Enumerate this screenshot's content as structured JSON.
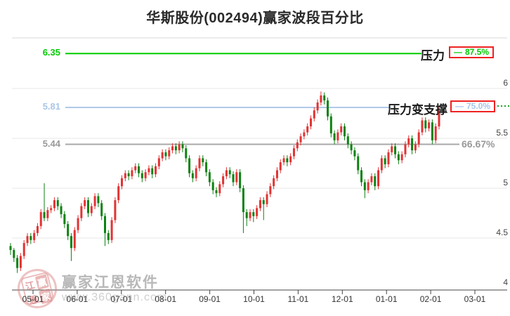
{
  "title": "华斯股份(002494)赢家波段百分比",
  "watermark": {
    "brand": "赢家江恩软件",
    "url": "www.360gann.com",
    "seal_chars": [
      "江",
      "赢",
      "恩",
      "家"
    ]
  },
  "chart_data": {
    "type": "candlestick",
    "title": "华斯股份(002494)赢家波段百分比",
    "up_color": "#e23333",
    "down_color": "#0e8212",
    "x_axis": {
      "tick_labels": [
        "05-01",
        "06-01",
        "07-01",
        "08-01",
        "09-01",
        "10-01",
        "11-01",
        "12-01",
        "01-01",
        "02-01",
        "03-01"
      ]
    },
    "y_axis": {
      "side": "right",
      "tick_labels": [
        "6",
        "5.5",
        "5",
        "4.5",
        "4"
      ],
      "tick_values": [
        6,
        5.5,
        5,
        4.5,
        4
      ],
      "gridlines": [
        6,
        5.5,
        5,
        4.5
      ],
      "range": [
        3.95,
        6.55
      ]
    },
    "horizontal_lines": [
      {
        "price": 6.35,
        "price_label": "6.35",
        "label": "压力",
        "dash": "—",
        "percent": "87.5%",
        "color": "#00cc00",
        "text_color": "#00cc00",
        "badged": true
      },
      {
        "price": 5.81,
        "price_label": "5.81",
        "label": "压力变支撑",
        "dash": "—",
        "percent": "75.0%",
        "color": "#b0c9e8",
        "text_color": "#a9c6e8",
        "badged": true
      },
      {
        "price": 5.44,
        "price_label": "5.44",
        "label": "",
        "dash": "",
        "percent": "66.67%",
        "color": "#a8a8a8",
        "text_color": "#999999",
        "badged": false
      }
    ],
    "candles": [
      [
        4.42,
        4.45,
        4.33,
        4.38
      ],
      [
        4.38,
        4.4,
        4.26,
        4.3
      ],
      [
        4.3,
        4.33,
        4.15,
        4.2
      ],
      [
        4.2,
        4.35,
        4.17,
        4.32
      ],
      [
        4.32,
        4.48,
        4.29,
        4.45
      ],
      [
        4.45,
        4.55,
        4.42,
        4.52
      ],
      [
        4.52,
        4.55,
        4.44,
        4.48
      ],
      [
        4.48,
        4.58,
        4.45,
        4.55
      ],
      [
        4.55,
        4.65,
        4.52,
        4.62
      ],
      [
        4.62,
        4.79,
        4.59,
        4.76
      ],
      [
        4.76,
        5.05,
        4.67,
        4.7
      ],
      [
        4.7,
        4.81,
        4.67,
        4.78
      ],
      [
        4.78,
        4.83,
        4.75,
        4.8
      ],
      [
        4.8,
        4.91,
        4.77,
        4.88
      ],
      [
        4.88,
        4.91,
        4.78,
        4.82
      ],
      [
        4.82,
        4.85,
        4.7,
        4.74
      ],
      [
        4.74,
        4.77,
        4.6,
        4.64
      ],
      [
        4.64,
        4.67,
        4.48,
        4.52
      ],
      [
        4.52,
        4.55,
        4.27,
        4.4
      ],
      [
        4.4,
        4.61,
        4.37,
        4.58
      ],
      [
        4.58,
        4.73,
        4.55,
        4.7
      ],
      [
        4.7,
        4.85,
        4.67,
        4.82
      ],
      [
        4.82,
        4.91,
        4.79,
        4.88
      ],
      [
        4.88,
        4.91,
        4.71,
        4.75
      ],
      [
        4.75,
        4.85,
        4.72,
        4.82
      ],
      [
        4.82,
        4.95,
        4.79,
        4.92
      ],
      [
        4.92,
        4.95,
        4.81,
        4.85
      ],
      [
        4.85,
        4.88,
        4.68,
        4.72
      ],
      [
        4.72,
        4.75,
        4.42,
        4.55
      ],
      [
        4.55,
        4.58,
        4.44,
        4.48
      ],
      [
        4.48,
        4.71,
        4.45,
        4.68
      ],
      [
        4.68,
        4.91,
        4.65,
        4.88
      ],
      [
        4.88,
        5.05,
        4.85,
        5.02
      ],
      [
        5.02,
        5.13,
        4.99,
        5.1
      ],
      [
        5.1,
        5.18,
        5.07,
        5.15
      ],
      [
        5.15,
        5.18,
        5.08,
        5.12
      ],
      [
        5.12,
        5.21,
        5.09,
        5.18
      ],
      [
        5.18,
        5.25,
        5.15,
        5.22
      ],
      [
        5.22,
        5.25,
        5.11,
        5.15
      ],
      [
        5.15,
        5.18,
        5.06,
        5.1
      ],
      [
        5.1,
        5.19,
        5.07,
        5.16
      ],
      [
        5.16,
        5.23,
        5.13,
        5.2
      ],
      [
        5.2,
        5.23,
        5.1,
        5.14
      ],
      [
        5.14,
        5.25,
        5.11,
        5.22
      ],
      [
        5.22,
        5.33,
        5.19,
        5.3
      ],
      [
        5.3,
        5.39,
        5.27,
        5.36
      ],
      [
        5.36,
        5.39,
        5.28,
        5.32
      ],
      [
        5.32,
        5.41,
        5.29,
        5.38
      ],
      [
        5.38,
        5.45,
        5.35,
        5.42
      ],
      [
        5.42,
        5.45,
        5.34,
        5.38
      ],
      [
        5.38,
        5.47,
        5.35,
        5.44
      ],
      [
        5.44,
        5.47,
        5.36,
        5.4
      ],
      [
        5.4,
        5.43,
        5.26,
        5.3
      ],
      [
        5.3,
        5.33,
        5.11,
        5.15
      ],
      [
        5.15,
        5.18,
        5.06,
        5.1
      ],
      [
        5.1,
        5.23,
        5.07,
        5.2
      ],
      [
        5.2,
        5.33,
        5.17,
        5.3
      ],
      [
        5.3,
        5.33,
        5.22,
        5.26
      ],
      [
        5.26,
        5.29,
        5.12,
        5.16
      ],
      [
        5.16,
        5.19,
        5.02,
        5.06
      ],
      [
        5.06,
        5.09,
        4.94,
        4.98
      ],
      [
        4.98,
        5.01,
        4.91,
        4.95
      ],
      [
        4.95,
        5.07,
        4.92,
        5.04
      ],
      [
        5.04,
        5.15,
        5.01,
        5.12
      ],
      [
        5.12,
        5.21,
        5.09,
        5.18
      ],
      [
        5.18,
        5.21,
        5.1,
        5.14
      ],
      [
        5.14,
        5.17,
        5.02,
        5.06
      ],
      [
        5.06,
        5.19,
        5.03,
        5.16
      ],
      [
        5.16,
        5.19,
        4.96,
        5.0
      ],
      [
        5.0,
        5.03,
        4.55,
        4.76
      ],
      [
        4.76,
        4.79,
        4.62,
        4.7
      ],
      [
        4.7,
        4.79,
        4.67,
        4.76
      ],
      [
        4.76,
        4.79,
        4.66,
        4.72
      ],
      [
        4.72,
        4.83,
        4.69,
        4.8
      ],
      [
        4.8,
        4.91,
        4.77,
        4.88
      ],
      [
        4.88,
        4.91,
        4.68,
        4.84
      ],
      [
        4.84,
        4.97,
        4.81,
        4.94
      ],
      [
        4.94,
        5.05,
        4.91,
        5.02
      ],
      [
        5.02,
        5.13,
        4.99,
        5.1
      ],
      [
        5.1,
        5.21,
        5.07,
        5.18
      ],
      [
        5.18,
        5.29,
        5.15,
        5.26
      ],
      [
        5.26,
        5.33,
        5.23,
        5.3
      ],
      [
        5.3,
        5.33,
        5.22,
        5.26
      ],
      [
        5.26,
        5.35,
        5.23,
        5.32
      ],
      [
        5.32,
        5.43,
        5.29,
        5.4
      ],
      [
        5.4,
        5.49,
        5.37,
        5.46
      ],
      [
        5.46,
        5.55,
        5.43,
        5.52
      ],
      [
        5.52,
        5.59,
        5.49,
        5.56
      ],
      [
        5.56,
        5.65,
        5.53,
        5.62
      ],
      [
        5.62,
        5.73,
        5.59,
        5.7
      ],
      [
        5.7,
        5.81,
        5.67,
        5.78
      ],
      [
        5.78,
        5.89,
        5.75,
        5.86
      ],
      [
        5.86,
        5.97,
        5.83,
        5.93
      ],
      [
        5.93,
        5.96,
        5.84,
        5.88
      ],
      [
        5.88,
        5.91,
        5.68,
        5.72
      ],
      [
        5.72,
        5.75,
        5.51,
        5.55
      ],
      [
        5.55,
        5.58,
        5.44,
        5.48
      ],
      [
        5.48,
        5.59,
        5.45,
        5.56
      ],
      [
        5.56,
        5.65,
        5.53,
        5.62
      ],
      [
        5.62,
        5.65,
        5.48,
        5.52
      ],
      [
        5.52,
        5.55,
        5.4,
        5.44
      ],
      [
        5.44,
        5.47,
        5.34,
        5.38
      ],
      [
        5.38,
        5.41,
        5.28,
        5.32
      ],
      [
        5.32,
        5.35,
        5.14,
        5.18
      ],
      [
        5.18,
        5.21,
        5.02,
        5.06
      ],
      [
        5.06,
        5.09,
        4.9,
        4.98
      ],
      [
        4.98,
        5.09,
        4.95,
        5.06
      ],
      [
        5.06,
        5.15,
        5.03,
        5.12
      ],
      [
        5.12,
        5.15,
        4.98,
        5.02
      ],
      [
        5.02,
        5.21,
        4.99,
        5.18
      ],
      [
        5.18,
        5.33,
        5.15,
        5.3
      ],
      [
        5.3,
        5.33,
        5.2,
        5.24
      ],
      [
        5.24,
        5.39,
        5.21,
        5.36
      ],
      [
        5.36,
        5.45,
        5.33,
        5.42
      ],
      [
        5.42,
        5.45,
        5.3,
        5.34
      ],
      [
        5.34,
        5.37,
        5.24,
        5.28
      ],
      [
        5.28,
        5.37,
        5.25,
        5.34
      ],
      [
        5.34,
        5.47,
        5.31,
        5.44
      ],
      [
        5.44,
        5.53,
        5.41,
        5.5
      ],
      [
        5.5,
        5.53,
        5.34,
        5.38
      ],
      [
        5.38,
        5.47,
        5.35,
        5.44
      ],
      [
        5.44,
        5.59,
        5.41,
        5.56
      ],
      [
        5.56,
        5.71,
        5.53,
        5.68
      ],
      [
        5.68,
        5.71,
        5.56,
        5.6
      ],
      [
        5.6,
        5.69,
        5.57,
        5.66
      ],
      [
        5.66,
        5.69,
        5.44,
        5.48
      ],
      [
        5.48,
        5.65,
        5.45,
        5.62
      ],
      [
        5.62,
        5.82,
        5.59,
        5.78
      ]
    ]
  }
}
